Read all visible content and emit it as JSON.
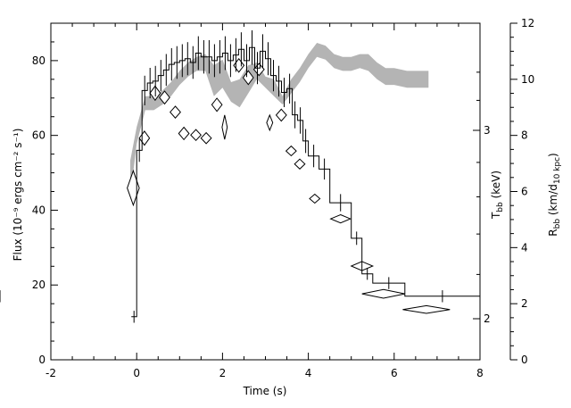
{
  "chart_data": {
    "type": "scatter",
    "xlabel": "Time (s)",
    "xlim": [
      -2,
      8
    ],
    "x_ticks": [
      "-2",
      "0",
      "2",
      "4",
      "6",
      "8"
    ],
    "left_axis": {
      "label": "Flux (10⁻⁹ ergs cm⁻² s⁻¹)",
      "ylim": [
        0,
        90
      ],
      "ticks": [
        "0",
        "20",
        "40",
        "60",
        "80"
      ]
    },
    "tbb_axis": {
      "label": "T_bb (keV)",
      "scale": "log",
      "ticks": [
        "2",
        "3"
      ]
    },
    "rbb_axis": {
      "label": "R_bb (km/d_10 kpc)",
      "ylim": [
        0,
        12
      ],
      "ticks": [
        "0",
        "2",
        "4",
        "6",
        "8",
        "10",
        "12"
      ]
    },
    "series": [
      {
        "style": "step",
        "x_edges": [
          -0.125,
          0.0,
          0.125,
          0.25,
          0.375,
          0.5,
          0.625,
          0.75,
          0.875,
          1.0,
          1.125,
          1.25,
          1.375,
          1.5,
          1.625,
          1.75,
          1.875,
          2.0,
          2.125,
          2.25,
          2.375,
          2.5,
          2.625,
          2.75,
          2.875,
          3.0,
          3.125,
          3.25,
          3.375,
          3.5,
          3.625,
          3.75,
          3.875,
          4.0,
          4.25,
          4.5,
          5.0,
          5.25,
          5.5,
          6.25,
          8.0
        ],
        "values": [
          11.5,
          56,
          72,
          74,
          74.5,
          76,
          77.5,
          79,
          79.5,
          80,
          80.5,
          79.5,
          82,
          81,
          81,
          80,
          81,
          82,
          80,
          81.5,
          83,
          80,
          83.5,
          78,
          82.5,
          80.5,
          76,
          74.5,
          71.5,
          72.5,
          65.5,
          64,
          58.5,
          54.5,
          51,
          42,
          32.5,
          23,
          20.5,
          17,
          17
        ]
      },
      {
        "style": "band",
        "x": [
          -0.15,
          0.0,
          0.2,
          0.4,
          0.6,
          0.8,
          1.0,
          1.2,
          1.4,
          1.6,
          1.8,
          2.0,
          2.2,
          2.4,
          2.6,
          2.8,
          3.0,
          3.2,
          3.4,
          3.6,
          3.8,
          4.0,
          4.2,
          4.4,
          4.6,
          4.8,
          5.0,
          5.2,
          5.4,
          5.6,
          5.8,
          6.0,
          6.3,
          6.6,
          6.8
        ],
        "upper": [
          7.1,
          8.3,
          9.4,
          9.4,
          9.6,
          9.9,
          10.3,
          10.6,
          10.8,
          10.9,
          10.5,
          10.7,
          9.9,
          10.0,
          10.5,
          10.6,
          10.1,
          10.0,
          9.4,
          10.0,
          10.4,
          10.9,
          11.3,
          11.2,
          10.9,
          10.8,
          10.8,
          10.9,
          10.9,
          10.6,
          10.4,
          10.4,
          10.3,
          10.3,
          10.3
        ],
        "lower": [
          5.8,
          7.7,
          8.9,
          8.9,
          9.1,
          9.4,
          9.8,
          10.1,
          10.3,
          10.3,
          9.4,
          9.7,
          9.2,
          9.0,
          9.5,
          10.0,
          9.7,
          9.4,
          9.1,
          9.5,
          9.9,
          10.4,
          10.8,
          10.7,
          10.4,
          10.3,
          10.3,
          10.4,
          10.3,
          10.0,
          9.8,
          9.8,
          9.7,
          9.7,
          9.7
        ],
        "color": "#b4b4b4"
      },
      {
        "style": "diamond",
        "points": [
          {
            "x": -0.08,
            "y": 2.65,
            "dx": 0.14,
            "dy": 0.1
          },
          {
            "x": 0.18,
            "y": 2.95,
            "dx": 0.12,
            "dy": 0.045
          },
          {
            "x": 0.43,
            "y": 3.25,
            "dx": 0.12,
            "dy": 0.05
          },
          {
            "x": 0.65,
            "y": 3.22,
            "dx": 0.12,
            "dy": 0.045
          },
          {
            "x": 0.9,
            "y": 3.12,
            "dx": 0.12,
            "dy": 0.04
          },
          {
            "x": 1.1,
            "y": 2.98,
            "dx": 0.12,
            "dy": 0.04
          },
          {
            "x": 1.38,
            "y": 2.97,
            "dx": 0.12,
            "dy": 0.035
          },
          {
            "x": 1.62,
            "y": 2.95,
            "dx": 0.12,
            "dy": 0.035
          },
          {
            "x": 1.87,
            "y": 3.17,
            "dx": 0.12,
            "dy": 0.045
          },
          {
            "x": 2.05,
            "y": 3.02,
            "dx": 0.06,
            "dy": 0.08
          },
          {
            "x": 2.38,
            "y": 3.45,
            "dx": 0.12,
            "dy": 0.05
          },
          {
            "x": 2.6,
            "y": 3.36,
            "dx": 0.12,
            "dy": 0.05
          },
          {
            "x": 2.85,
            "y": 3.42,
            "dx": 0.12,
            "dy": 0.045
          },
          {
            "x": 3.1,
            "y": 3.05,
            "dx": 0.07,
            "dy": 0.05
          },
          {
            "x": 3.37,
            "y": 3.1,
            "dx": 0.12,
            "dy": 0.04
          },
          {
            "x": 3.6,
            "y": 2.87,
            "dx": 0.12,
            "dy": 0.03
          },
          {
            "x": 3.8,
            "y": 2.79,
            "dx": 0.12,
            "dy": 0.03
          },
          {
            "x": 4.15,
            "y": 2.59,
            "dx": 0.12,
            "dy": 0.025
          },
          {
            "x": 4.75,
            "y": 2.48,
            "dx": 0.23,
            "dy": 0.022
          },
          {
            "x": 5.25,
            "y": 2.24,
            "dx": 0.25,
            "dy": 0.022
          },
          {
            "x": 5.75,
            "y": 2.11,
            "dx": 0.5,
            "dy": 0.02
          },
          {
            "x": 6.75,
            "y": 2.04,
            "dx": 0.55,
            "dy": 0.017
          }
        ]
      }
    ]
  }
}
